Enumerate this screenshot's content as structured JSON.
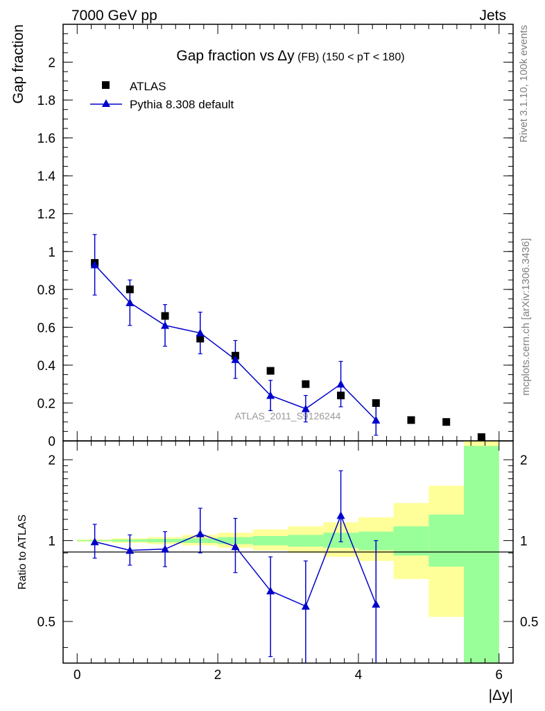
{
  "header": {
    "left": "7000 GeV pp",
    "right": "Jets"
  },
  "side_labels": {
    "rivet": "Rivet 3.1.10,  100k events",
    "mcplots": "mcplots.cern.ch [arXiv:1306.3436]"
  },
  "watermark": "ATLAS_2011_S9126244",
  "colors": {
    "data": "#000000",
    "mc": "#0000cc",
    "band_inner": "#99ff99",
    "band_outer": "#ffff99",
    "ratio_line": "#000000"
  },
  "chart_data": [
    {
      "type": "scatter",
      "title_parts": {
        "main": "Gap fraction vs",
        "delta_y": "Δy",
        "fb": "(FB)",
        "range": "(150 < pT < 180)"
      },
      "ylabel": "Gap fraction",
      "xlabel": "",
      "xlim": [
        -0.2,
        6.2
      ],
      "ylim": [
        0,
        2.2
      ],
      "yticks": [
        "0",
        "0.2",
        "0.4",
        "0.6",
        "0.8",
        "1",
        "1.2",
        "1.4",
        "1.6",
        "1.8",
        "2"
      ],
      "legend": {
        "position": "top-left",
        "data_label": "ATLAS",
        "mc_label": "Pythia 8.308 default"
      },
      "series": [
        {
          "name": "ATLAS",
          "x": [
            0.25,
            0.75,
            1.25,
            1.75,
            2.25,
            2.75,
            3.25,
            3.75,
            4.25,
            4.75,
            5.25,
            5.75
          ],
          "y": [
            0.94,
            0.8,
            0.66,
            0.54,
            0.45,
            0.37,
            0.3,
            0.24,
            0.2,
            0.11,
            0.1,
            0.02
          ]
        },
        {
          "name": "Pythia 8.308 default",
          "x": [
            0.25,
            0.75,
            1.25,
            1.75,
            2.25,
            2.75,
            3.25,
            3.75,
            4.25
          ],
          "y": [
            0.93,
            0.73,
            0.61,
            0.57,
            0.43,
            0.24,
            0.17,
            0.3,
            0.11
          ],
          "err": [
            0.16,
            0.12,
            0.11,
            0.11,
            0.1,
            0.08,
            0.07,
            0.12,
            0.08
          ]
        }
      ]
    },
    {
      "type": "line",
      "ylabel": "Ratio to ATLAS",
      "xlabel": "|Δy|",
      "xlim": [
        -0.2,
        6.2
      ],
      "ylim": [
        0.35,
        2.35
      ],
      "yticks": [
        "0.5",
        "1",
        "2"
      ],
      "xticks": [
        "0",
        "2",
        "4",
        "6"
      ],
      "bands": {
        "edges": [
          0,
          0.5,
          1,
          1.5,
          2,
          2.5,
          3,
          3.5,
          4,
          4.5,
          5,
          5.5,
          6
        ],
        "inner_lo": [
          0.995,
          0.99,
          0.985,
          0.98,
          0.97,
          0.96,
          0.95,
          0.94,
          0.92,
          0.88,
          0.8,
          0.35
        ],
        "inner_hi": [
          1.005,
          1.01,
          1.015,
          1.02,
          1.03,
          1.04,
          1.05,
          1.07,
          1.08,
          1.13,
          1.25,
          2.25
        ],
        "outer_lo": [
          0.99,
          0.98,
          0.97,
          0.96,
          0.94,
          0.92,
          0.9,
          0.87,
          0.84,
          0.72,
          0.52,
          0.35
        ],
        "outer_hi": [
          1.01,
          1.02,
          1.03,
          1.05,
          1.07,
          1.1,
          1.13,
          1.17,
          1.22,
          1.38,
          1.6,
          2.35
        ]
      },
      "series": [
        {
          "name": "Pythia 8.308 default",
          "x": [
            0.25,
            0.75,
            1.25,
            1.75,
            2.25,
            2.75,
            3.25,
            3.75,
            4.25
          ],
          "y": [
            0.99,
            0.92,
            0.93,
            1.06,
            0.95,
            0.65,
            0.57,
            1.24,
            0.58
          ],
          "err_lo": [
            0.13,
            0.11,
            0.13,
            0.16,
            0.19,
            0.28,
            0.23,
            0.25,
            0.25
          ],
          "err_hi": [
            0.16,
            0.13,
            0.15,
            0.26,
            0.26,
            0.22,
            0.27,
            0.58,
            0.42
          ]
        }
      ]
    }
  ]
}
